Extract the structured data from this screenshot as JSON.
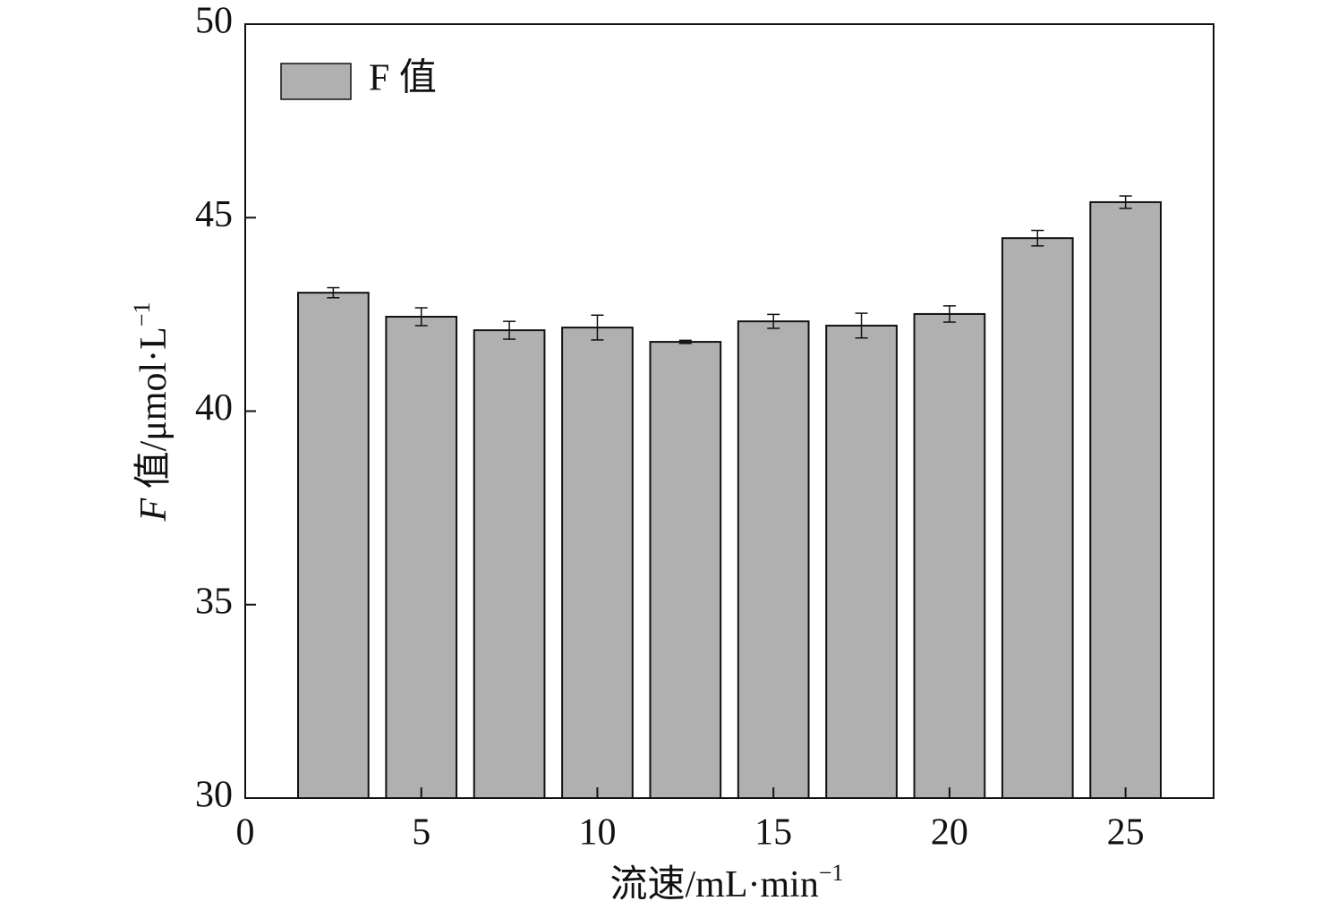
{
  "chart_data": {
    "type": "bar",
    "x": [
      2.5,
      5,
      7.5,
      10,
      12.5,
      15,
      17.5,
      20,
      22.5,
      25
    ],
    "series": [
      {
        "name": "F 值",
        "color": "#b0b0b0",
        "values": [
          43.06,
          42.44,
          42.09,
          42.16,
          41.79,
          42.32,
          42.21,
          42.51,
          44.47,
          45.4
        ],
        "errors": [
          0.13,
          0.23,
          0.23,
          0.32,
          0.04,
          0.18,
          0.32,
          0.21,
          0.2,
          0.16
        ]
      }
    ],
    "xlim": [
      0,
      27.5
    ],
    "xticks": [
      0,
      5,
      10,
      15,
      20,
      25
    ],
    "ylim": [
      30,
      50
    ],
    "yticks": [
      30,
      35,
      40,
      45,
      50
    ],
    "x_label": {
      "text": "流速/mL·min",
      "superscript": "−1"
    },
    "y_label": {
      "italic": "F",
      "text": " 值/μmol·L",
      "superscript": "−1"
    },
    "legend": "upper left"
  }
}
